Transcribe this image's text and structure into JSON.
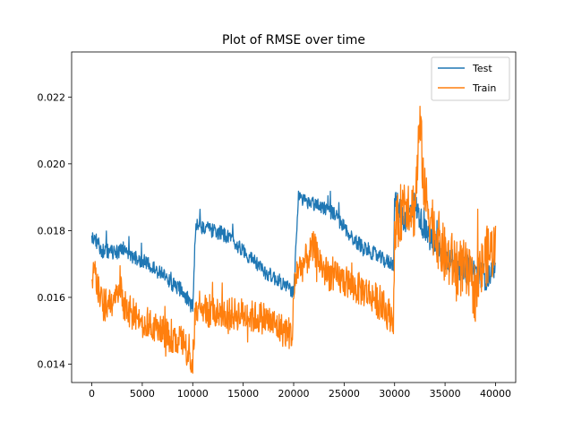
{
  "chart_data": {
    "type": "line",
    "title": "Plot of RMSE over time",
    "xlabel": "",
    "ylabel": "",
    "xlim": [
      -2000,
      42000
    ],
    "ylim": [
      0.01345,
      0.02335
    ],
    "xticks": [
      0,
      5000,
      10000,
      15000,
      20000,
      25000,
      30000,
      35000,
      40000
    ],
    "yticks": [
      0.014,
      0.016,
      0.018,
      0.02,
      0.022
    ],
    "xtick_labels": [
      "0",
      "5000",
      "10000",
      "15000",
      "20000",
      "25000",
      "30000",
      "35000",
      "40000"
    ],
    "ytick_labels": [
      "0.014",
      "0.016",
      "0.018",
      "0.020",
      "0.022"
    ],
    "grid": false,
    "legend_position": "top-right",
    "series": [
      {
        "name": "Test",
        "color": "#1f77b4",
        "noise": 0.00022,
        "x": [
          0,
          200,
          1000,
          2500,
          3000,
          4000,
          5000,
          6000,
          7000,
          8000,
          9000,
          9900,
          10000,
          10300,
          11000,
          12000,
          13000,
          14000,
          15000,
          16000,
          17000,
          18000,
          19000,
          19900,
          20000,
          20500,
          21000,
          22000,
          23000,
          24000,
          25000,
          26000,
          27000,
          28000,
          29000,
          29900,
          30000,
          31000,
          32000,
          33000,
          34000,
          35000,
          36000,
          37000,
          38000,
          39000,
          40000
        ],
        "y": [
          0.01775,
          0.0178,
          0.0174,
          0.01735,
          0.0175,
          0.0172,
          0.0171,
          0.0169,
          0.0167,
          0.0164,
          0.0162,
          0.0157,
          0.0158,
          0.0182,
          0.0181,
          0.018,
          0.0179,
          0.0177,
          0.0174,
          0.0171,
          0.0168,
          0.0166,
          0.0164,
          0.0162,
          0.016,
          0.0191,
          0.0189,
          0.0188,
          0.0187,
          0.0185,
          0.0181,
          0.0177,
          0.0175,
          0.0173,
          0.0171,
          0.017,
          0.0189,
          0.0183,
          0.0188,
          0.018,
          0.0175,
          0.0172,
          0.017,
          0.0168,
          0.0168,
          0.0166,
          0.0167
        ]
      },
      {
        "name": "Train",
        "color": "#ff7f0e",
        "noise": 0.0005,
        "x": [
          0,
          200,
          1000,
          2000,
          2800,
          3000,
          4000,
          5000,
          6000,
          7000,
          8000,
          9000,
          9900,
          10000,
          10300,
          11000,
          12000,
          13000,
          14000,
          15000,
          16000,
          17000,
          18000,
          19000,
          19900,
          20000,
          20300,
          21000,
          22000,
          23000,
          24000,
          25000,
          26000,
          27000,
          28000,
          29000,
          29900,
          30000,
          31000,
          32000,
          32500,
          33000,
          34000,
          35000,
          36000,
          37000,
          38000,
          39000,
          40000
        ],
        "y": [
          0.0165,
          0.0168,
          0.0158,
          0.0157,
          0.0165,
          0.0158,
          0.0155,
          0.0153,
          0.0151,
          0.015,
          0.0148,
          0.0146,
          0.0141,
          0.0142,
          0.0158,
          0.0156,
          0.0156,
          0.0155,
          0.0155,
          0.0155,
          0.0154,
          0.0154,
          0.0152,
          0.015,
          0.0149,
          0.016,
          0.0168,
          0.017,
          0.0175,
          0.0168,
          0.0166,
          0.0165,
          0.0163,
          0.0162,
          0.016,
          0.0156,
          0.0154,
          0.0178,
          0.019,
          0.0186,
          0.0212,
          0.019,
          0.018,
          0.0172,
          0.017,
          0.0168,
          0.0162,
          0.0172,
          0.0175
        ]
      }
    ]
  }
}
